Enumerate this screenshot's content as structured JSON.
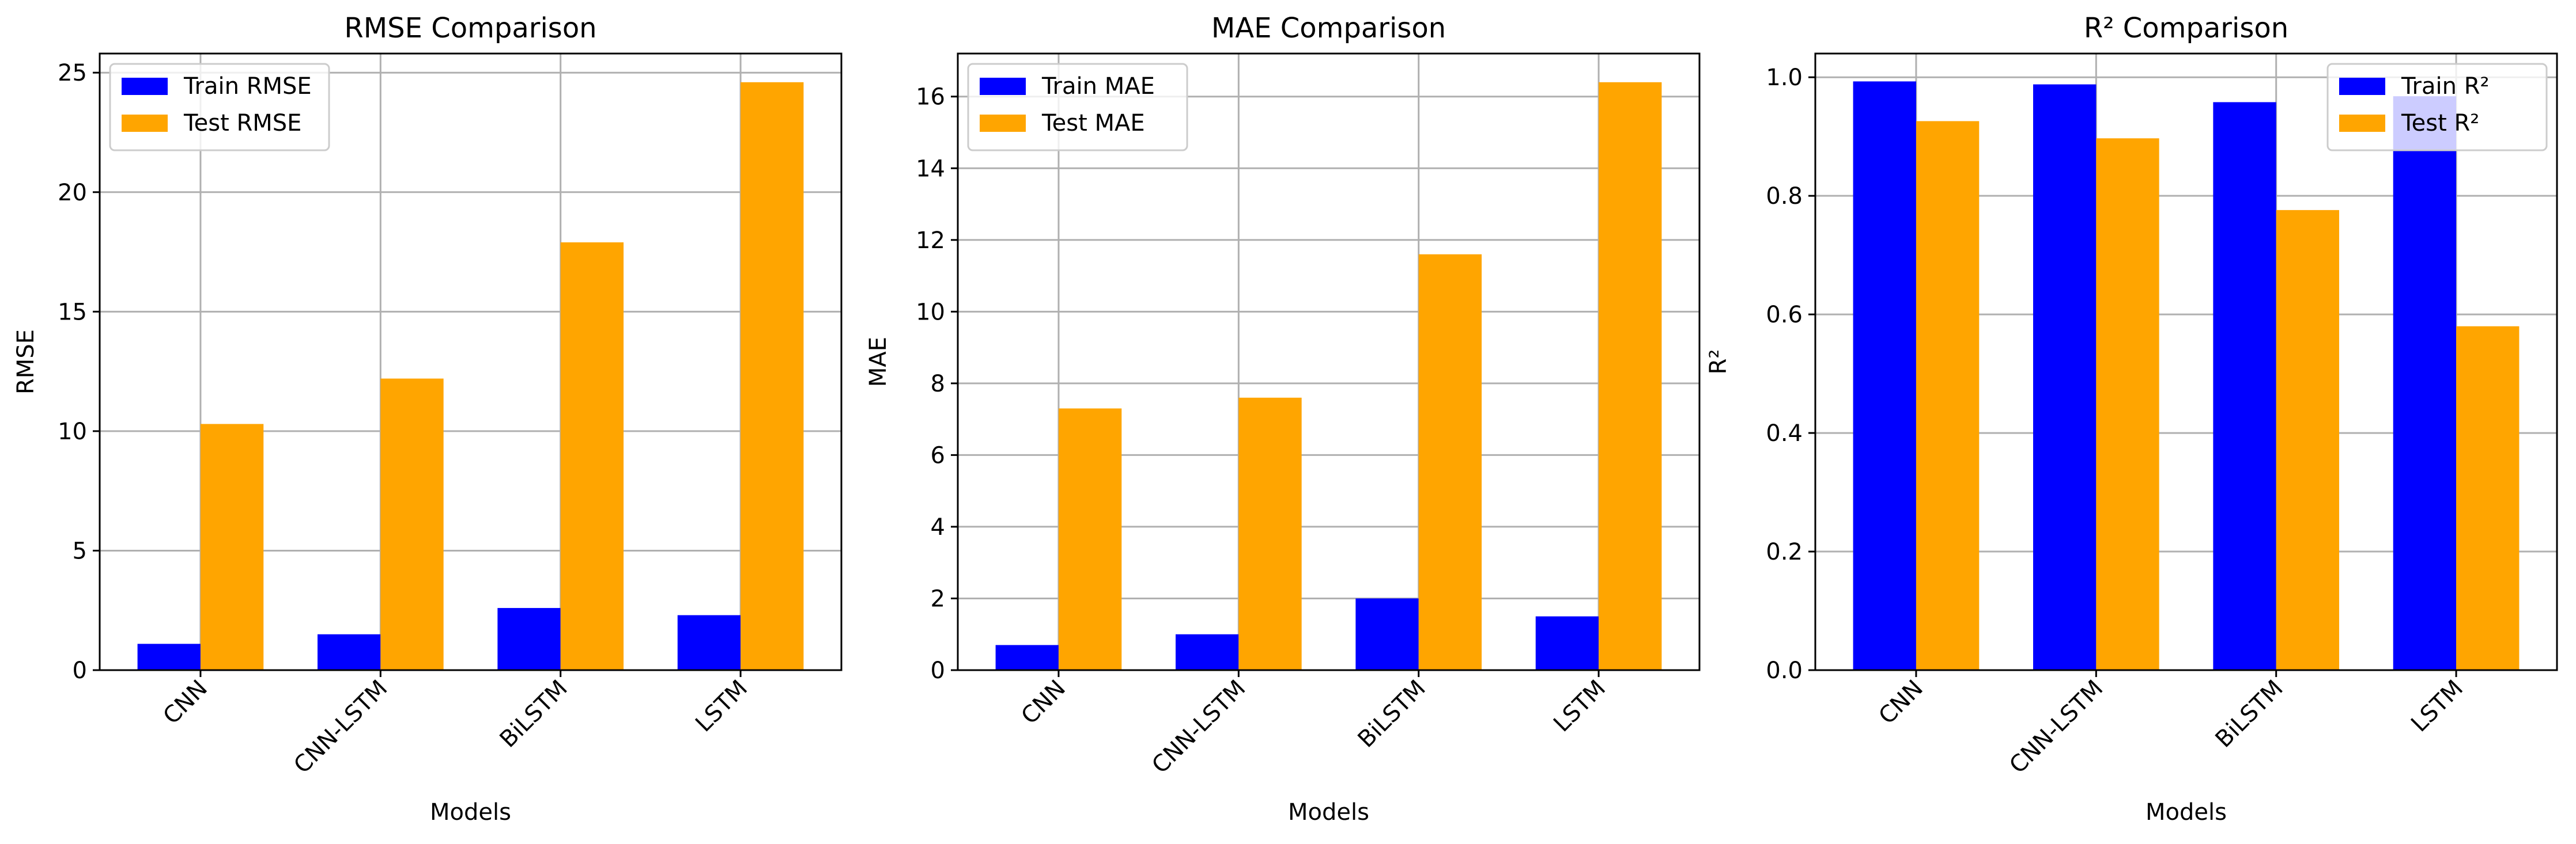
{
  "colors": {
    "train": "#0000ff",
    "test": "#ffa500",
    "grid": "#b0b0b0",
    "axis": "#000000"
  },
  "chart_data": [
    {
      "type": "bar",
      "title": "RMSE Comparison",
      "xlabel": "Models",
      "ylabel": "RMSE",
      "categories": [
        "CNN",
        "CNN-LSTM",
        "BiLSTM",
        "LSTM"
      ],
      "series": [
        {
          "name": "Train RMSE",
          "values": [
            1.1,
            1.5,
            2.6,
            2.3
          ]
        },
        {
          "name": "Test RMSE",
          "values": [
            10.3,
            12.2,
            17.9,
            24.6
          ]
        }
      ],
      "ylim": [
        0,
        25.8
      ],
      "yticks": [
        0,
        5,
        10,
        15,
        20,
        25
      ],
      "ytick_labels": [
        "0",
        "5",
        "10",
        "15",
        "20",
        "25"
      ],
      "grid": true,
      "legend": "upper-left"
    },
    {
      "type": "bar",
      "title": "MAE Comparison",
      "xlabel": "Models",
      "ylabel": "MAE",
      "categories": [
        "CNN",
        "CNN-LSTM",
        "BiLSTM",
        "LSTM"
      ],
      "series": [
        {
          "name": "Train MAE",
          "values": [
            0.7,
            1.0,
            2.0,
            1.5
          ]
        },
        {
          "name": "Test MAE",
          "values": [
            7.3,
            7.6,
            11.6,
            16.4
          ]
        }
      ],
      "ylim": [
        0,
        17.2
      ],
      "yticks": [
        0,
        2,
        4,
        6,
        8,
        10,
        12,
        14,
        16
      ],
      "ytick_labels": [
        "0",
        "2",
        "4",
        "6",
        "8",
        "10",
        "12",
        "14",
        "16"
      ],
      "grid": true,
      "legend": "upper-left"
    },
    {
      "type": "bar",
      "title": "R² Comparison",
      "xlabel": "Models",
      "ylabel": "R²",
      "categories": [
        "CNN",
        "CNN-LSTM",
        "BiLSTM",
        "LSTM"
      ],
      "series": [
        {
          "name": "Train R²",
          "values": [
            0.993,
            0.988,
            0.958,
            0.968
          ]
        },
        {
          "name": "Test R²",
          "values": [
            0.926,
            0.897,
            0.776,
            0.58
          ]
        }
      ],
      "ylim": [
        0,
        1.04
      ],
      "yticks": [
        0,
        0.2,
        0.4,
        0.6,
        0.8,
        1.0
      ],
      "ytick_labels": [
        "0.0",
        "0.2",
        "0.4",
        "0.6",
        "0.8",
        "1.0"
      ],
      "grid": true,
      "legend": "upper-right"
    }
  ]
}
